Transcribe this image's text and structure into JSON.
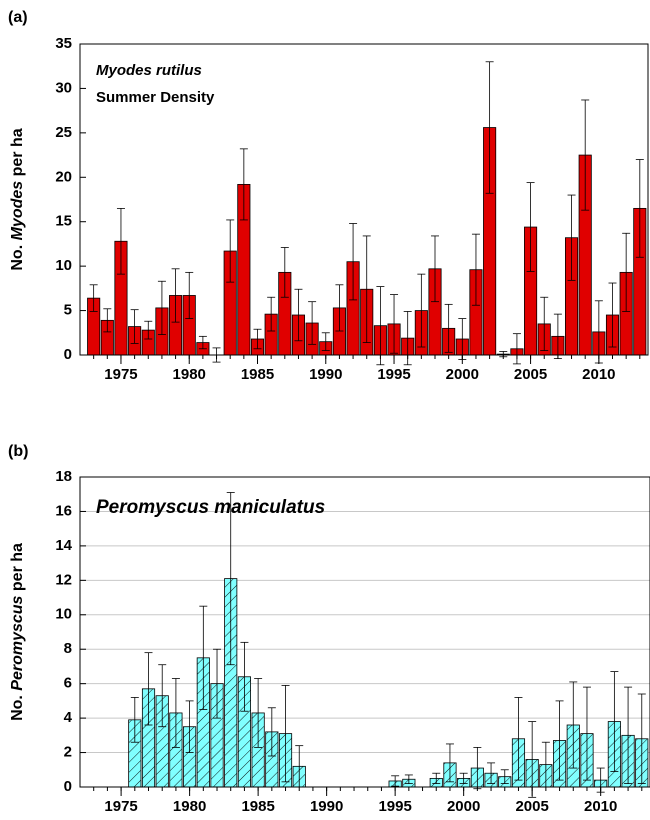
{
  "chart_data": [
    {
      "type": "bar",
      "panel_label": "(a)",
      "annotations": [
        "Myodes rutilus",
        "Summer Density"
      ],
      "y_label": [
        "No. ",
        "Myodes",
        " per ha"
      ],
      "x": [
        1973,
        1974,
        1975,
        1976,
        1977,
        1978,
        1979,
        1980,
        1981,
        1982,
        1983,
        1984,
        1985,
        1986,
        1987,
        1988,
        1989,
        1990,
        1991,
        1992,
        1993,
        1994,
        1995,
        1996,
        1997,
        1998,
        1999,
        2000,
        2001,
        2002,
        2003,
        2004,
        2005,
        2006,
        2007,
        2008,
        2009,
        2010,
        2011,
        2012,
        2013
      ],
      "values": [
        6.4,
        3.9,
        12.8,
        3.2,
        2.8,
        5.3,
        6.7,
        6.7,
        1.4,
        0,
        11.7,
        19.2,
        1.8,
        4.6,
        9.3,
        4.5,
        3.6,
        1.5,
        5.3,
        10.5,
        7.4,
        3.3,
        3.5,
        1.9,
        5.0,
        9.7,
        3.0,
        1.8,
        9.6,
        25.6,
        0.1,
        0.7,
        14.4,
        3.5,
        2.1,
        13.2,
        22.5,
        2.6,
        4.5,
        9.3,
        16.5
      ],
      "errors": [
        1.5,
        1.3,
        3.7,
        1.9,
        1.0,
        3.0,
        3.0,
        2.6,
        0.7,
        0.8,
        3.5,
        4.0,
        1.1,
        1.9,
        2.8,
        2.9,
        2.4,
        1.0,
        2.6,
        4.3,
        6.0,
        4.4,
        3.3,
        3.0,
        4.1,
        3.7,
        2.7,
        2.3,
        4.0,
        7.4,
        0.3,
        1.7,
        5.0,
        3.0,
        2.5,
        4.8,
        6.2,
        3.5,
        3.6,
        4.4,
        5.5
      ],
      "color": "#e00000",
      "hatch": false,
      "grid": false,
      "xlim": [
        1972,
        2013.6
      ],
      "xticks": [
        1975,
        1980,
        1985,
        1990,
        1995,
        2000,
        2005,
        2010
      ],
      "ylim": [
        0,
        35
      ],
      "yticks": [
        0,
        5,
        10,
        15,
        20,
        25,
        30,
        35
      ]
    },
    {
      "type": "bar",
      "panel_label": "(b)",
      "annotations": [
        "Peromyscus maniculatus"
      ],
      "y_label": [
        "No. ",
        "Peromyscus",
        " per ha"
      ],
      "x": [
        1973,
        1974,
        1975,
        1976,
        1977,
        1978,
        1979,
        1980,
        1981,
        1982,
        1983,
        1984,
        1985,
        1986,
        1987,
        1988,
        1989,
        1990,
        1991,
        1992,
        1993,
        1994,
        1995,
        1996,
        1997,
        1998,
        1999,
        2000,
        2001,
        2002,
        2003,
        2004,
        2005,
        2006,
        2007,
        2008,
        2009,
        2010,
        2011,
        2012,
        2013
      ],
      "values": [
        null,
        null,
        null,
        3.9,
        5.7,
        5.3,
        4.3,
        3.5,
        7.5,
        6.0,
        12.1,
        6.4,
        4.3,
        3.2,
        3.1,
        1.2,
        null,
        null,
        null,
        null,
        null,
        null,
        0.35,
        0.45,
        null,
        0.5,
        1.4,
        0.5,
        1.1,
        0.8,
        0.6,
        2.8,
        1.6,
        1.3,
        2.7,
        3.6,
        3.1,
        0.4,
        3.8,
        3.0,
        2.8
      ],
      "errors": [
        null,
        null,
        null,
        1.3,
        2.1,
        1.8,
        2.0,
        1.5,
        3.0,
        2.0,
        5.0,
        2.0,
        2.0,
        1.4,
        2.8,
        1.2,
        null,
        null,
        null,
        null,
        null,
        null,
        0.3,
        0.25,
        null,
        0.3,
        1.1,
        0.3,
        1.2,
        0.6,
        0.4,
        2.4,
        2.2,
        1.3,
        2.3,
        2.5,
        2.7,
        0.7,
        2.9,
        2.8,
        2.6
      ],
      "color": "#80ffff",
      "hatch": true,
      "grid": true,
      "xlim": [
        1972,
        2013.6
      ],
      "xticks": [
        1975,
        1980,
        1985,
        1990,
        1995,
        2000,
        2005,
        2010
      ],
      "ylim": [
        0,
        18
      ],
      "yticks": [
        0,
        2,
        4,
        6,
        8,
        10,
        12,
        14,
        16,
        18
      ]
    }
  ]
}
